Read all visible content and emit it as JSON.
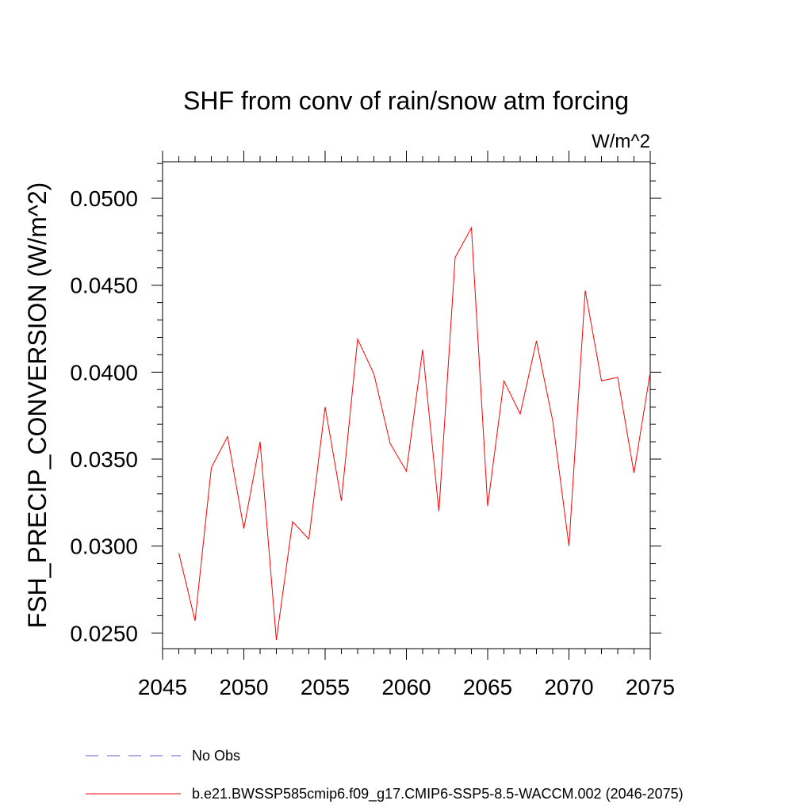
{
  "chart_data": {
    "type": "line",
    "title": "SHF from conv of rain/snow atm forcing",
    "units_label": "W/m^2",
    "xlabel": "",
    "ylabel": "FSH_PRECIP_CONVERSION  (W/m^2)",
    "xlim": [
      2045,
      2075
    ],
    "ylim": [
      0.0241,
      0.0521
    ],
    "x_ticks": [
      2045,
      2050,
      2055,
      2060,
      2065,
      2070,
      2075
    ],
    "x_tick_labels": [
      "2045",
      "2050",
      "2055",
      "2060",
      "2065",
      "2070",
      "2075"
    ],
    "y_ticks": [
      0.025,
      0.03,
      0.035,
      0.04,
      0.045,
      0.05
    ],
    "y_tick_labels": [
      "0.0250",
      "0.0300",
      "0.0350",
      "0.0400",
      "0.0450",
      "0.0500"
    ],
    "grid": false,
    "legend_position": "bottom",
    "series": [
      {
        "name": "No Obs",
        "color": "#6a5acd",
        "dash": "dashed",
        "x": [],
        "values": []
      },
      {
        "name": "b.e21.BWSSP585cmip6.f09_g17.CMIP6-SSP5-8.5-WACCM.002 (2046-2075)",
        "color": "#ff0000",
        "dash": "solid",
        "x": [
          2046,
          2047,
          2048,
          2049,
          2050,
          2051,
          2052,
          2053,
          2054,
          2055,
          2056,
          2057,
          2058,
          2059,
          2060,
          2061,
          2062,
          2063,
          2064,
          2065,
          2066,
          2067,
          2068,
          2069,
          2070,
          2071,
          2072,
          2073,
          2074,
          2075
        ],
        "values": [
          0.0296,
          0.0257,
          0.0345,
          0.0363,
          0.031,
          0.036,
          0.0246,
          0.0314,
          0.0304,
          0.038,
          0.0326,
          0.0419,
          0.0399,
          0.0359,
          0.0343,
          0.0413,
          0.032,
          0.0466,
          0.0483,
          0.0323,
          0.0395,
          0.0376,
          0.0418,
          0.0372,
          0.03,
          0.0447,
          0.0395,
          0.0397,
          0.0342,
          0.04
        ]
      }
    ]
  }
}
